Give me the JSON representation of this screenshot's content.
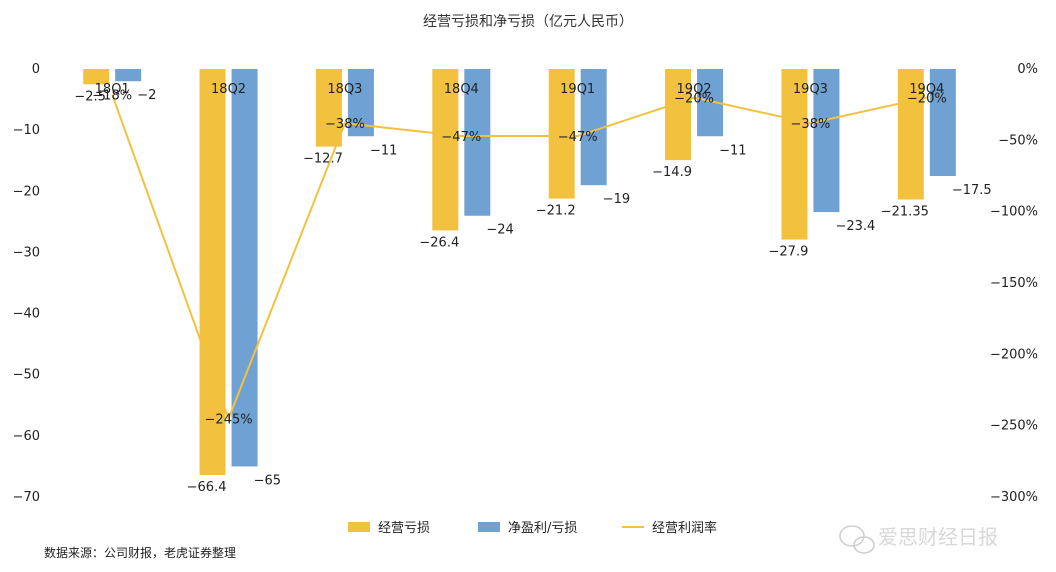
{
  "chart_data": {
    "type": "bar",
    "title": "经营亏损和净亏损（亿元人民币）",
    "categories": [
      "18Q1",
      "18Q2",
      "18Q3",
      "18Q4",
      "19Q1",
      "19Q2",
      "19Q3",
      "19Q4"
    ],
    "series": [
      {
        "name": "经营亏损",
        "type": "bar",
        "axis": "left",
        "color": "#F2C23F",
        "values": [
          -2.5,
          -66.4,
          -12.7,
          -26.4,
          -21.2,
          -14.9,
          -27.9,
          -21.35
        ],
        "labels": [
          "−2.5",
          "−66.4",
          "−12.7",
          "−26.4",
          "−21.2",
          "−14.9",
          "−27.9",
          "−21.35"
        ]
      },
      {
        "name": "净盈利/亏损",
        "type": "bar",
        "axis": "right",
        "color": "#6FA1D3",
        "values": [
          -2,
          -65,
          -11,
          -24,
          -19,
          -11,
          -23.4,
          -17.5
        ],
        "labels": [
          "−2",
          "−65",
          "−11",
          "−24",
          "−19",
          "−11",
          "−23.4",
          "−17.5"
        ]
      },
      {
        "name": "经营利润率",
        "type": "line",
        "axis": "right",
        "color": "#F2C23F",
        "values": [
          -18,
          -245,
          -38,
          -47,
          -47,
          -20,
          -38,
          -20
        ],
        "labels": [
          "−18%",
          "−245%",
          "−38%",
          "−47%",
          "−47%",
          "−20%",
          "−38%",
          "−20%"
        ]
      }
    ],
    "y_left": {
      "ylim": [
        -70,
        0
      ],
      "ticks": [
        0,
        -10,
        -20,
        -30,
        -40,
        -50,
        -60,
        -70
      ],
      "tick_labels": [
        "0",
        "−10",
        "−20",
        "−30",
        "−40",
        "−50",
        "−60",
        "−70"
      ]
    },
    "y_right": {
      "ylim": [
        -300,
        0
      ],
      "ticks": [
        0,
        -50,
        -100,
        -150,
        -200,
        -250,
        -300
      ],
      "tick_labels": [
        "0%",
        "−50%",
        "−100%",
        "−150%",
        "−200%",
        "−250%",
        "−300%"
      ]
    },
    "legend": "bottom",
    "grid": false
  },
  "source_note": "数据来源：公司财报，老虎证券整理",
  "watermark": "爱思财经日报"
}
